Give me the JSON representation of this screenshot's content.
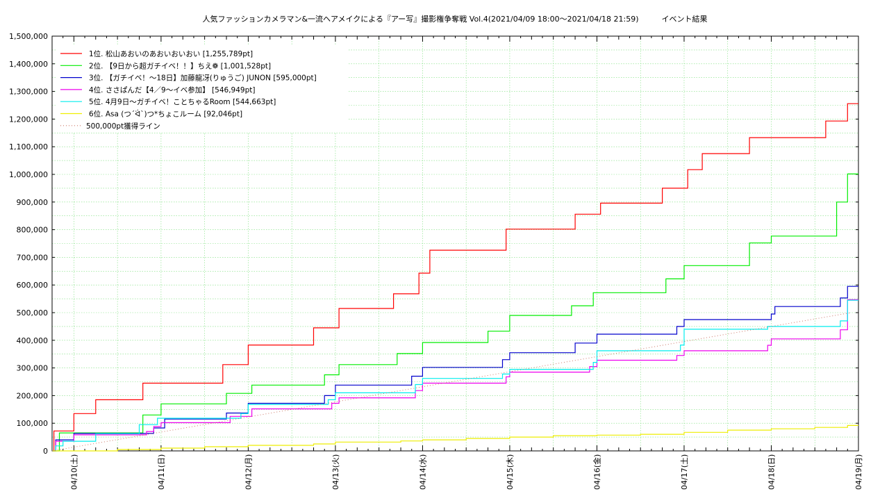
{
  "chart_data": {
    "type": "line",
    "title": "人気ファッションカメラマン&一流ヘアメイクによる『アー写』撮影権争奪戦 Vol.4(2021/04/09 18:00〜2021/04/18 21:59)　　　イベント結果",
    "xlim": [
      "2021-04-09 18:00",
      "2021-04-19 00:00"
    ],
    "ylim": [
      0,
      1500000
    ],
    "y_ticks": [
      0,
      100000,
      200000,
      300000,
      400000,
      500000,
      600000,
      700000,
      800000,
      900000,
      1000000,
      1100000,
      1200000,
      1300000,
      1400000,
      1500000
    ],
    "y_tick_labels": [
      "0",
      "100,000",
      "200,000",
      "300,000",
      "400,000",
      "500,000",
      "600,000",
      "700,000",
      "800,000",
      "900,000",
      "1,000,000",
      "1,100,000",
      "1,200,000",
      "1,300,000",
      "1,400,000",
      "1,500,000"
    ],
    "x_ticks": [
      "2021-04-10",
      "2021-04-11",
      "2021-04-12",
      "2021-04-13",
      "2021-04-14",
      "2021-04-15",
      "2021-04-16",
      "2021-04-17",
      "2021-04-18",
      "2021-04-19"
    ],
    "x_tick_labels": [
      "04/10(土)",
      "04/11(日)",
      "04/12(月)",
      "04/13(火)",
      "04/14(水)",
      "04/15(木)",
      "04/16(金)",
      "04/17(土)",
      "04/18(日)",
      "04/19(月)"
    ],
    "grid": true,
    "legend_position": "top-left",
    "series": [
      {
        "name": "1位. 松山あおいのあおいおいおい [1,255,789pt]",
        "color": "#ff0000",
        "style": "step",
        "points": [
          [
            "2021-04-09 18:00",
            0
          ],
          [
            "2021-04-09 18:30",
            72000
          ],
          [
            "2021-04-10 00:00",
            135000
          ],
          [
            "2021-04-10 06:00",
            185000
          ],
          [
            "2021-04-10 19:00",
            245000
          ],
          [
            "2021-04-11 17:00",
            312000
          ],
          [
            "2021-04-12 00:00",
            383000
          ],
          [
            "2021-04-12 18:00",
            445000
          ],
          [
            "2021-04-13 01:00",
            515000
          ],
          [
            "2021-04-13 16:00",
            568000
          ],
          [
            "2021-04-13 23:00",
            643000
          ],
          [
            "2021-04-14 02:00",
            726000
          ],
          [
            "2021-04-14 23:00",
            802000
          ],
          [
            "2021-04-15 18:00",
            856000
          ],
          [
            "2021-04-16 01:00",
            896000
          ],
          [
            "2021-04-16 18:00",
            950000
          ],
          [
            "2021-04-17 01:00",
            1017000
          ],
          [
            "2021-04-17 05:00",
            1075000
          ],
          [
            "2021-04-17 18:00",
            1133000
          ],
          [
            "2021-04-18 15:00",
            1193000
          ],
          [
            "2021-04-18 21:00",
            1255789
          ]
        ]
      },
      {
        "name": "2位. 【9日から超ガチイベ！！】ちえ❁ [1,001,528pt]",
        "color": "#00ee00",
        "style": "step",
        "points": [
          [
            "2021-04-09 18:00",
            0
          ],
          [
            "2021-04-09 20:00",
            65000
          ],
          [
            "2021-04-10 19:00",
            130000
          ],
          [
            "2021-04-11 00:00",
            170000
          ],
          [
            "2021-04-11 18:00",
            208000
          ],
          [
            "2021-04-12 01:00",
            238000
          ],
          [
            "2021-04-12 21:00",
            275000
          ],
          [
            "2021-04-13 01:00",
            312000
          ],
          [
            "2021-04-13 17:00",
            352000
          ],
          [
            "2021-04-14 00:00",
            392000
          ],
          [
            "2021-04-14 18:00",
            433000
          ],
          [
            "2021-04-15 00:00",
            490000
          ],
          [
            "2021-04-15 17:00",
            525000
          ],
          [
            "2021-04-15 23:00",
            572000
          ],
          [
            "2021-04-16 19:00",
            622000
          ],
          [
            "2021-04-17 00:00",
            670000
          ],
          [
            "2021-04-17 18:00",
            752000
          ],
          [
            "2021-04-18 00:00",
            777000
          ],
          [
            "2021-04-18 18:00",
            900000
          ],
          [
            "2021-04-18 21:00",
            1001528
          ]
        ]
      },
      {
        "name": "3位. 【ガチイベ！〜18日】加藤龍冴(りゅうご) JUNON [595,000pt]",
        "color": "#0000cc",
        "style": "step",
        "points": [
          [
            "2021-04-09 18:00",
            0
          ],
          [
            "2021-04-09 19:00",
            40000
          ],
          [
            "2021-04-10 00:00",
            63000
          ],
          [
            "2021-04-10 22:00",
            83000
          ],
          [
            "2021-04-11 01:00",
            115000
          ],
          [
            "2021-04-11 18:00",
            137000
          ],
          [
            "2021-04-12 00:00",
            172000
          ],
          [
            "2021-04-12 21:00",
            200000
          ],
          [
            "2021-04-13 00:00",
            238000
          ],
          [
            "2021-04-13 21:00",
            270000
          ],
          [
            "2021-04-14 00:00",
            302000
          ],
          [
            "2021-04-14 22:00",
            330000
          ],
          [
            "2021-04-15 00:00",
            355000
          ],
          [
            "2021-04-15 18:00",
            390000
          ],
          [
            "2021-04-16 00:00",
            422000
          ],
          [
            "2021-04-16 22:00",
            450000
          ],
          [
            "2021-04-17 00:00",
            475000
          ],
          [
            "2021-04-18 00:00",
            495000
          ],
          [
            "2021-04-18 01:00",
            522000
          ],
          [
            "2021-04-18 19:00",
            553000
          ],
          [
            "2021-04-18 21:00",
            595000
          ]
        ]
      },
      {
        "name": "4位. ささぱんだ【4／9〜イベ参加】 [546,949pt]",
        "color": "#ee00ee",
        "style": "step",
        "points": [
          [
            "2021-04-09 18:00",
            0
          ],
          [
            "2021-04-09 19:00",
            35000
          ],
          [
            "2021-04-10 00:00",
            58000
          ],
          [
            "2021-04-10 20:00",
            70000
          ],
          [
            "2021-04-10 22:00",
            88000
          ],
          [
            "2021-04-11 00:00",
            102000
          ],
          [
            "2021-04-11 19:00",
            125000
          ],
          [
            "2021-04-12 01:00",
            152000
          ],
          [
            "2021-04-12 23:00",
            172000
          ],
          [
            "2021-04-13 01:00",
            192000
          ],
          [
            "2021-04-13 22:00",
            218000
          ],
          [
            "2021-04-14 00:00",
            245000
          ],
          [
            "2021-04-14 23:00",
            268000
          ],
          [
            "2021-04-15 00:00",
            285000
          ],
          [
            "2021-04-15 22:00",
            305000
          ],
          [
            "2021-04-16 00:00",
            328000
          ],
          [
            "2021-04-16 22:00",
            345000
          ],
          [
            "2021-04-17 00:00",
            362000
          ],
          [
            "2021-04-17 23:00",
            382000
          ],
          [
            "2021-04-18 00:00",
            405000
          ],
          [
            "2021-04-18 19:00",
            438000
          ],
          [
            "2021-04-18 21:00",
            546949
          ]
        ]
      },
      {
        "name": "5位. 4月9日〜ガチイベ！ことちゃるRoom [544,663pt]",
        "color": "#00eeee",
        "style": "step",
        "points": [
          [
            "2021-04-09 18:00",
            0
          ],
          [
            "2021-04-09 19:00",
            18000
          ],
          [
            "2021-04-09 21:00",
            35000
          ],
          [
            "2021-04-10 06:00",
            62000
          ],
          [
            "2021-04-10 18:00",
            95000
          ],
          [
            "2021-04-10 23:00",
            118000
          ],
          [
            "2021-04-11 22:00",
            135000
          ],
          [
            "2021-04-12 00:00",
            168000
          ],
          [
            "2021-04-12 22:00",
            185000
          ],
          [
            "2021-04-13 00:00",
            210000
          ],
          [
            "2021-04-13 22:00",
            240000
          ],
          [
            "2021-04-14 00:00",
            262000
          ],
          [
            "2021-04-14 22:00",
            278000
          ],
          [
            "2021-04-15 00:00",
            295000
          ],
          [
            "2021-04-15 23:00",
            320000
          ],
          [
            "2021-04-16 00:00",
            362000
          ],
          [
            "2021-04-16 23:00",
            383000
          ],
          [
            "2021-04-17 00:00",
            440000
          ],
          [
            "2021-04-17 23:00",
            450000
          ],
          [
            "2021-04-18 19:00",
            470000
          ],
          [
            "2021-04-18 21:00",
            544663
          ]
        ]
      },
      {
        "name": "6位. Asa (つ´ᐛ`)つ*ちょこルーム [92,046pt]",
        "color": "#eeee00",
        "style": "step",
        "points": [
          [
            "2021-04-09 18:00",
            0
          ],
          [
            "2021-04-10 12:00",
            5000
          ],
          [
            "2021-04-11 00:00",
            10000
          ],
          [
            "2021-04-11 12:00",
            15000
          ],
          [
            "2021-04-12 00:00",
            20000
          ],
          [
            "2021-04-12 18:00",
            25000
          ],
          [
            "2021-04-13 00:00",
            32000
          ],
          [
            "2021-04-13 18:00",
            36000
          ],
          [
            "2021-04-14 00:00",
            40000
          ],
          [
            "2021-04-14 12:00",
            45000
          ],
          [
            "2021-04-15 00:00",
            50000
          ],
          [
            "2021-04-15 12:00",
            55000
          ],
          [
            "2021-04-16 00:00",
            57000
          ],
          [
            "2021-04-16 12:00",
            60000
          ],
          [
            "2021-04-17 00:00",
            67000
          ],
          [
            "2021-04-17 12:00",
            75000
          ],
          [
            "2021-04-18 00:00",
            80000
          ],
          [
            "2021-04-18 12:00",
            85000
          ],
          [
            "2021-04-18 21:00",
            92046
          ]
        ]
      },
      {
        "name": "500,000pt獲得ライン",
        "color": "#cc7766",
        "style": "dotted",
        "points": [
          [
            "2021-04-09 18:00",
            0
          ],
          [
            "2021-04-18 22:00",
            500000
          ]
        ]
      }
    ]
  }
}
